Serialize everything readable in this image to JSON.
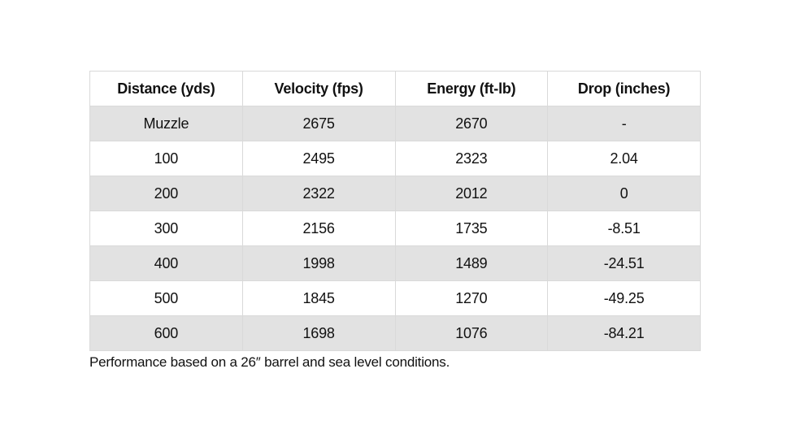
{
  "table": {
    "headers": [
      "Distance (yds)",
      "Velocity (fps)",
      "Energy (ft-lb)",
      "Drop (inches)"
    ],
    "rows": [
      [
        "Muzzle",
        "2675",
        "2670",
        "-"
      ],
      [
        "100",
        "2495",
        "2323",
        "2.04"
      ],
      [
        "200",
        "2322",
        "2012",
        "0"
      ],
      [
        "300",
        "2156",
        "1735",
        "-8.51"
      ],
      [
        "400",
        "1998",
        "1489",
        "-24.51"
      ],
      [
        "500",
        "1845",
        "1270",
        "-49.25"
      ],
      [
        "600",
        "1698",
        "1076",
        "-84.21"
      ]
    ],
    "colors": {
      "stripe": "#e2e2e2",
      "border": "#d9d9d9",
      "text": "#111111"
    }
  },
  "caption": "Performance based on a 26″ barrel and sea level conditions."
}
